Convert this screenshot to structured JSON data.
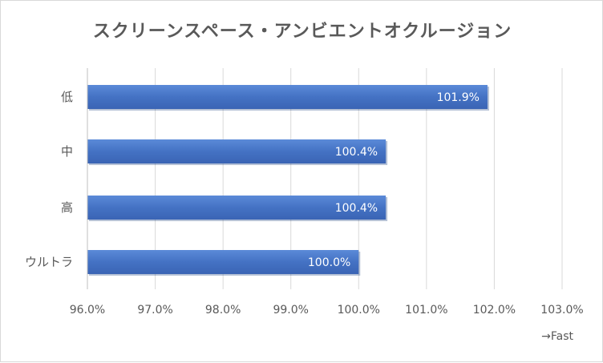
{
  "chart_data": {
    "type": "bar",
    "orientation": "horizontal",
    "title": "スクリーンスペース・アンビエントオクルージョン",
    "categories": [
      "低",
      "中",
      "高",
      "ウルトラ"
    ],
    "values": [
      101.9,
      100.4,
      100.4,
      100.0
    ],
    "data_labels": [
      "101.9%",
      "100.4%",
      "100.4%",
      "100.0%"
    ],
    "xlim": [
      96,
      103
    ],
    "x_ticks": [
      "96.0%",
      "97.0%",
      "98.0%",
      "99.0%",
      "100.0%",
      "101.0%",
      "102.0%",
      "103.0%"
    ],
    "annotation": "→Fast",
    "grid": true,
    "bar_color": "#4472c4"
  }
}
